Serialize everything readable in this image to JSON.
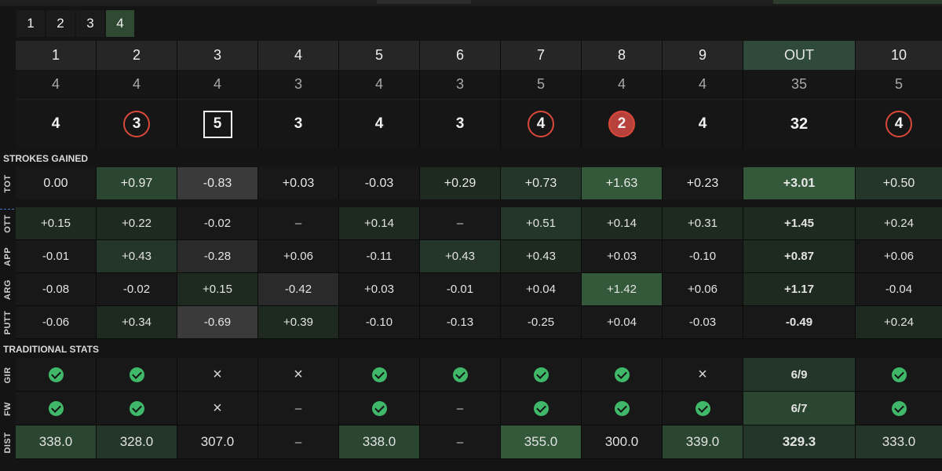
{
  "rounds": [
    "1",
    "2",
    "3",
    "4"
  ],
  "active_round": 3,
  "holes": [
    "1",
    "2",
    "3",
    "4",
    "5",
    "6",
    "7",
    "8",
    "9",
    "OUT",
    "10"
  ],
  "par": [
    "4",
    "4",
    "4",
    "3",
    "4",
    "3",
    "5",
    "4",
    "4",
    "35",
    "5"
  ],
  "scores": [
    {
      "v": "4",
      "style": "plain"
    },
    {
      "v": "3",
      "style": "ring"
    },
    {
      "v": "5",
      "style": "square"
    },
    {
      "v": "3",
      "style": "plain"
    },
    {
      "v": "4",
      "style": "plain"
    },
    {
      "v": "3",
      "style": "plain"
    },
    {
      "v": "4",
      "style": "ring"
    },
    {
      "v": "2",
      "style": "ring-filled"
    },
    {
      "v": "4",
      "style": "plain"
    },
    {
      "v": "32",
      "style": "plain"
    },
    {
      "v": "4",
      "style": "ring"
    }
  ],
  "sections": {
    "strokes_gained": "STROKES GAINED",
    "traditional": "TRADITIONAL STATS"
  },
  "tot": {
    "label": "TOT",
    "values": [
      "0.00",
      "+0.97",
      "-0.83",
      "+0.03",
      "-0.03",
      "+0.29",
      "+0.73",
      "+1.63",
      "+0.23",
      "+3.01",
      "+0.50"
    ],
    "shade": [
      0,
      3,
      -2,
      0,
      0,
      1,
      2,
      4,
      0,
      4,
      2
    ]
  },
  "sg_rows": [
    {
      "label": "OTT",
      "values": [
        "+0.15",
        "+0.22",
        "-0.02",
        "–",
        "+0.14",
        "–",
        "+0.51",
        "+0.14",
        "+0.31",
        "+1.45",
        "+0.24"
      ],
      "shade": [
        1,
        1,
        0,
        0,
        1,
        0,
        2,
        1,
        1,
        1,
        1
      ]
    },
    {
      "label": "APP",
      "values": [
        "-0.01",
        "+0.43",
        "-0.28",
        "+0.06",
        "-0.11",
        "+0.43",
        "+0.43",
        "+0.03",
        "-0.10",
        "+0.87",
        "+0.06"
      ],
      "shade": [
        0,
        2,
        -1,
        0,
        0,
        2,
        1,
        0,
        0,
        1,
        0
      ]
    },
    {
      "label": "ARG",
      "values": [
        "-0.08",
        "-0.02",
        "+0.15",
        "-0.42",
        "+0.03",
        "-0.01",
        "+0.04",
        "+1.42",
        "+0.06",
        "+1.17",
        "-0.04"
      ],
      "shade": [
        0,
        0,
        1,
        -1,
        0,
        0,
        0,
        4,
        0,
        1,
        0
      ]
    },
    {
      "label": "PUTT",
      "values": [
        "-0.06",
        "+0.34",
        "-0.69",
        "+0.39",
        "-0.10",
        "-0.13",
        "-0.25",
        "+0.04",
        "-0.03",
        "-0.49",
        "+0.24"
      ],
      "shade": [
        0,
        1,
        -2,
        1,
        0,
        0,
        0,
        0,
        0,
        0,
        1
      ]
    }
  ],
  "tr_rows": [
    {
      "label": "GIR",
      "values": [
        "check",
        "check",
        "x",
        "x",
        "check",
        "check",
        "check",
        "check",
        "x",
        "6/9",
        "check"
      ],
      "shade": [
        0,
        0,
        0,
        0,
        0,
        0,
        0,
        0,
        0,
        2,
        0
      ]
    },
    {
      "label": "FW",
      "values": [
        "check",
        "check",
        "x",
        "–",
        "check",
        "–",
        "check",
        "check",
        "check",
        "6/7",
        "check"
      ],
      "shade": [
        0,
        0,
        0,
        0,
        0,
        0,
        0,
        0,
        0,
        3,
        0
      ]
    },
    {
      "label": "DIST",
      "values": [
        "338.0",
        "328.0",
        "307.0",
        "–",
        "338.0",
        "–",
        "355.0",
        "300.0",
        "339.0",
        "329.3",
        "333.0"
      ],
      "shade": [
        3,
        2,
        0,
        0,
        3,
        0,
        4,
        0,
        3,
        2,
        2
      ]
    }
  ],
  "colors": {
    "accent": "#40b86a",
    "birdie": "#d9493a",
    "eagle_fill": "#b8413c",
    "divider": "#3e74c8"
  }
}
